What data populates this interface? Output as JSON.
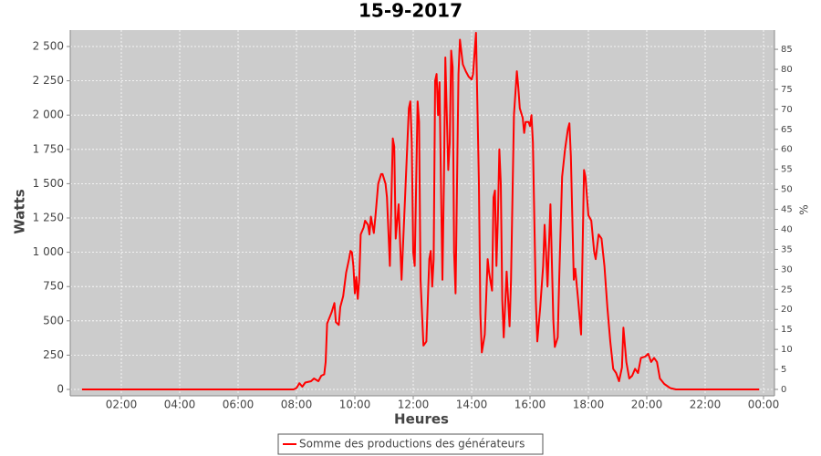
{
  "chart_data": {
    "type": "line",
    "title": "15-9-2017",
    "x_label": "Heures",
    "y_label": "Watts",
    "y2_label": "%",
    "xlim": [
      0.25,
      24.375
    ],
    "xticks": [
      {
        "value": 2,
        "label": "02:00"
      },
      {
        "value": 4,
        "label": "04:00"
      },
      {
        "value": 6,
        "label": "06:00"
      },
      {
        "value": 8,
        "label": "08:00"
      },
      {
        "value": 10,
        "label": "10:00"
      },
      {
        "value": 12,
        "label": "12:00"
      },
      {
        "value": 14,
        "label": "14:00"
      },
      {
        "value": 16,
        "label": "16:00"
      },
      {
        "value": 18,
        "label": "18:00"
      },
      {
        "value": 20,
        "label": "20:00"
      },
      {
        "value": 22,
        "label": "22:00"
      },
      {
        "value": 24,
        "label": "00:00"
      }
    ],
    "ylim": [
      -46.5,
      2619.7
    ],
    "yticks": [
      0,
      250,
      500,
      750,
      {
        "value": 1000,
        "label": "1 000"
      },
      {
        "value": 1250,
        "label": "1 250"
      },
      {
        "value": 1500,
        "label": "1 500"
      },
      {
        "value": 1750,
        "label": "1 750"
      },
      {
        "value": 2000,
        "label": "2 000"
      },
      {
        "value": 2250,
        "label": "2 250"
      },
      {
        "value": 2500,
        "label": "2 500"
      }
    ],
    "y2lim": [
      -1.6,
      89.8
    ],
    "y2ticks": [
      0,
      5,
      10,
      15,
      20,
      25,
      30,
      35,
      40,
      45,
      50,
      55,
      60,
      65,
      70,
      75,
      80,
      85
    ],
    "grid": true,
    "x": [
      0.65,
      7.9,
      8.0,
      8.1,
      8.2,
      8.3,
      8.5,
      8.6,
      8.75,
      8.85,
      8.95,
      9.0,
      9.05,
      9.2,
      9.3,
      9.35,
      9.45,
      9.5,
      9.6,
      9.7,
      9.8,
      9.85,
      9.9,
      9.95,
      10.0,
      10.05,
      10.1,
      10.15,
      10.2,
      10.3,
      10.35,
      10.45,
      10.5,
      10.55,
      10.65,
      10.7,
      10.8,
      10.9,
      10.95,
      11.05,
      11.1,
      11.2,
      11.3,
      11.35,
      11.4,
      11.5,
      11.6,
      11.7,
      11.8,
      11.85,
      11.9,
      11.95,
      12.0,
      12.05,
      12.15,
      12.2,
      12.25,
      12.35,
      12.45,
      12.55,
      12.6,
      12.65,
      12.7,
      12.75,
      12.8,
      12.85,
      12.9,
      12.95,
      13.0,
      13.05,
      13.1,
      13.15,
      13.2,
      13.25,
      13.3,
      13.35,
      13.4,
      13.45,
      13.5,
      13.55,
      13.6,
      13.65,
      13.7,
      13.8,
      13.9,
      14.0,
      14.05,
      14.1,
      14.15,
      14.25,
      14.3,
      14.35,
      14.45,
      14.55,
      14.6,
      14.7,
      14.75,
      14.8,
      14.85,
      14.9,
      14.95,
      15.0,
      15.05,
      15.1,
      15.2,
      15.3,
      15.35,
      15.45,
      15.55,
      15.6,
      15.65,
      15.75,
      15.8,
      15.85,
      15.95,
      16.0,
      16.05,
      16.1,
      16.2,
      16.25,
      16.35,
      16.45,
      16.5,
      16.55,
      16.6,
      16.7,
      16.8,
      16.85,
      16.95,
      17.0,
      17.1,
      17.2,
      17.3,
      17.35,
      17.4,
      17.5,
      17.55,
      17.65,
      17.75,
      17.85,
      17.9,
      18.0,
      18.1,
      18.2,
      18.25,
      18.35,
      18.45,
      18.55,
      18.65,
      18.75,
      18.85,
      18.95,
      19.05,
      19.15,
      19.2,
      19.3,
      19.4,
      19.5,
      19.6,
      19.7,
      19.8,
      19.95,
      20.05,
      20.15,
      20.25,
      20.35,
      20.45,
      20.6,
      20.8,
      21.0,
      23.85
    ],
    "series": [
      {
        "name": "Somme des productions des  générateurs",
        "color": "#ff0000",
        "values": [
          0,
          0,
          10,
          45,
          20,
          50,
          60,
          80,
          60,
          100,
          110,
          200,
          480,
          560,
          630,
          490,
          470,
          600,
          680,
          850,
          950,
          1010,
          1000,
          900,
          700,
          820,
          660,
          800,
          1130,
          1180,
          1230,
          1200,
          1130,
          1260,
          1140,
          1250,
          1500,
          1570,
          1570,
          1500,
          1400,
          900,
          1830,
          1770,
          1100,
          1350,
          800,
          1300,
          1800,
          2050,
          2100,
          1800,
          1000,
          900,
          2100,
          1950,
          800,
          320,
          350,
          950,
          1010,
          750,
          950,
          2250,
          2300,
          2000,
          2240,
          1500,
          800,
          1500,
          2420,
          2000,
          1600,
          1800,
          2470,
          2350,
          1000,
          700,
          1500,
          2300,
          2550,
          2460,
          2370,
          2320,
          2280,
          2260,
          2300,
          2450,
          2600,
          1500,
          550,
          270,
          400,
          950,
          850,
          720,
          1400,
          1450,
          900,
          1250,
          1750,
          1500,
          650,
          380,
          860,
          460,
          800,
          2000,
          2320,
          2200,
          2050,
          1980,
          1870,
          1950,
          1950,
          1920,
          2000,
          1800,
          650,
          350,
          600,
          900,
          1200,
          1000,
          750,
          1350,
          500,
          310,
          380,
          800,
          1550,
          1750,
          1900,
          1940,
          1700,
          800,
          880,
          650,
          400,
          1600,
          1550,
          1270,
          1230,
          1000,
          950,
          1130,
          1100,
          900,
          600,
          350,
          150,
          120,
          60,
          160,
          450,
          200,
          80,
          100,
          150,
          120,
          230,
          240,
          260,
          200,
          230,
          200,
          80,
          40,
          10,
          0,
          0
        ]
      }
    ]
  }
}
